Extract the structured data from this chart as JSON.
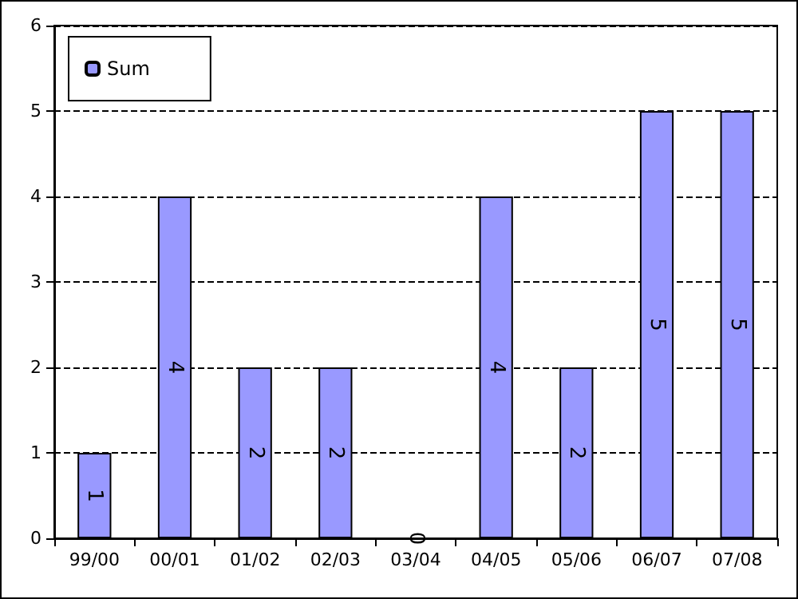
{
  "chart_data": {
    "type": "bar",
    "categories": [
      "99/00",
      "00/01",
      "01/02",
      "02/03",
      "03/04",
      "04/05",
      "05/06",
      "06/07",
      "07/08"
    ],
    "series": [
      {
        "name": "Sum",
        "color": "#9999ff",
        "values": [
          1,
          4,
          2,
          2,
          0,
          4,
          2,
          5,
          5
        ]
      }
    ],
    "ylim": [
      0,
      6
    ],
    "yticks": [
      0,
      1,
      2,
      3,
      4,
      5,
      6
    ],
    "grid": "y",
    "legend": "top left",
    "data_labels": true
  }
}
